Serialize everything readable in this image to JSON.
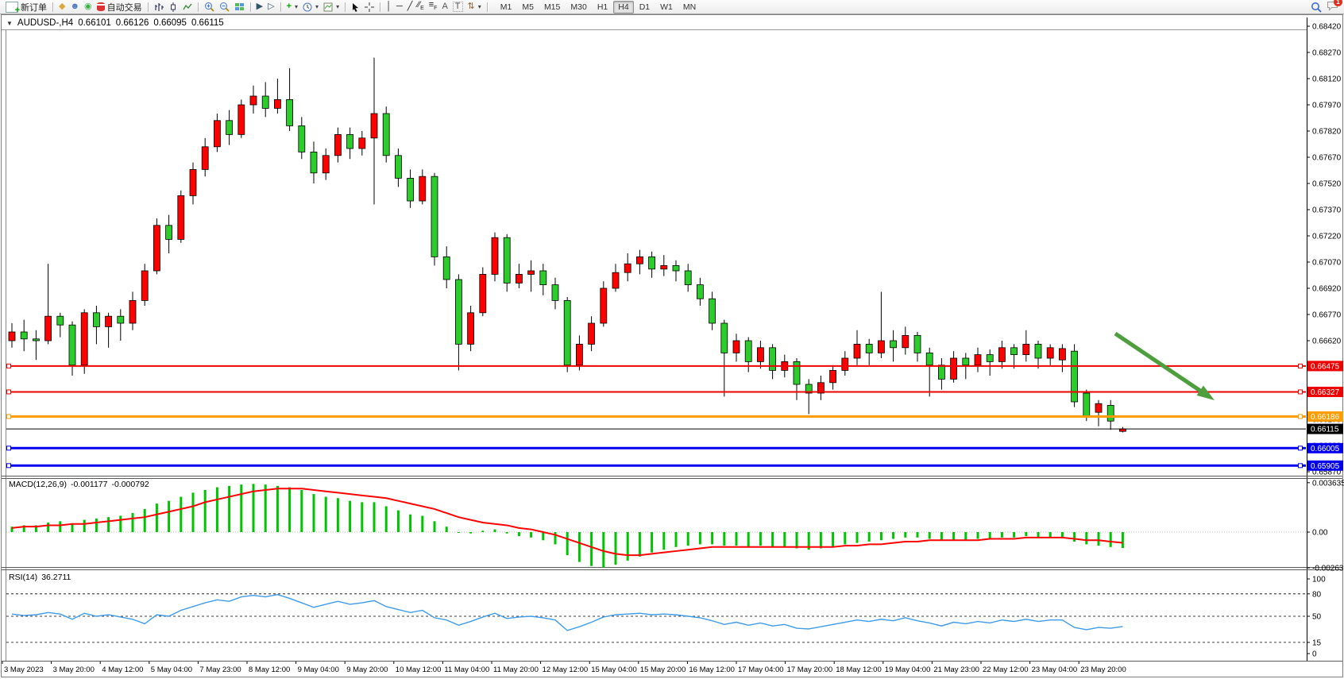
{
  "toolbar": {
    "new_order_label": "新订单",
    "auto_trading_label": "自动交易",
    "timeframes": [
      "M1",
      "M5",
      "M15",
      "M30",
      "H1",
      "H4",
      "D1",
      "W1",
      "MN"
    ],
    "active_timeframe": "H4",
    "notification_count": "1",
    "text_tool_label": "A",
    "label_tool_label": "T"
  },
  "chart": {
    "header_symbol": "AUDUSD-,H4",
    "ohlc": {
      "open": "0.66101",
      "high": "0.66126",
      "low": "0.66095",
      "close": "0.66115"
    },
    "current_price": "0.66115",
    "horizontal_lines": [
      {
        "price": 0.66475,
        "label": "0.66475",
        "color": "#ee0000",
        "thickness": 2,
        "handles": true
      },
      {
        "price": 0.66327,
        "label": "0.66327",
        "color": "#ee0000",
        "thickness": 2,
        "handles": true
      },
      {
        "price": 0.66186,
        "label": "0.66186",
        "color": "#ff9c00",
        "thickness": 3,
        "handles": true
      },
      {
        "price": 0.66115,
        "label": "0.66115",
        "color": "#000000",
        "thickness": 1,
        "handles": false
      },
      {
        "price": 0.66005,
        "label": "0.66005",
        "color": "#0000ee",
        "thickness": 3,
        "handles": true
      },
      {
        "price": 0.65905,
        "label": "0.65905",
        "color": "#0000ee",
        "thickness": 3,
        "handles": true
      }
    ],
    "annotation": {
      "type": "arrow",
      "direction": "down-right",
      "color": "#4e9e3d"
    }
  },
  "price_axis": {
    "ticks": [
      "0.68420",
      "0.68270",
      "0.68120",
      "0.67970",
      "0.67820",
      "0.67670",
      "0.67520",
      "0.67370",
      "0.67220",
      "0.67070",
      "0.66920",
      "0.66770",
      "0.66620",
      "0.66470",
      "0.66320",
      "0.66170",
      "0.66020",
      "0.65870"
    ]
  },
  "time_axis": {
    "labels": [
      "3 May 2023",
      "3 May 20:00",
      "4 May 12:00",
      "5 May 04:00",
      "7 May 23:00",
      "8 May 12:00",
      "9 May 04:00",
      "9 May 20:00",
      "10 May 12:00",
      "11 May 04:00",
      "11 May 20:00",
      "12 May 12:00",
      "15 May 04:00",
      "15 May 20:00",
      "16 May 12:00",
      "17 May 04:00",
      "17 May 20:00",
      "18 May 12:00",
      "19 May 04:00",
      "21 May 23:00",
      "22 May 12:00",
      "23 May 04:00",
      "23 May 20:00"
    ]
  },
  "indicators": {
    "macd": {
      "label": "MACD(12,26,9)",
      "main": "-0.001177",
      "signal": "-0.000792",
      "scale": [
        "0.003635",
        "0.00",
        "-0.00263"
      ]
    },
    "rsi": {
      "label": "RSI(14)",
      "value": "36.2711",
      "scale": [
        "100",
        "80",
        "50",
        "15",
        "0"
      ]
    }
  },
  "colors": {
    "bull": "#ff0000",
    "bear": "#2bcc2b",
    "wick": "#000000",
    "macd_hist": "#00c400",
    "macd_signal": "#ff0000",
    "rsi": "#3e9be9",
    "line_red": "#ee0000",
    "line_orange": "#ff9c00",
    "line_blue": "#0000ee",
    "current_price": "#000000",
    "arrow": "#4e9e3d"
  },
  "chart_data": [
    {
      "type": "candlestick",
      "title": "AUDUSD- H4",
      "color_convention": "red = bullish, green = bearish (Chinese convention)",
      "ylim": [
        0.6587,
        0.6842
      ],
      "current_bar": {
        "open": 0.66101,
        "high": 0.66126,
        "low": 0.66095,
        "close": 0.66115
      },
      "candles": [
        [
          0.6662,
          0.6672,
          0.6658,
          0.6667
        ],
        [
          0.6667,
          0.6674,
          0.6656,
          0.6663
        ],
        [
          0.6663,
          0.6668,
          0.6651,
          0.6662
        ],
        [
          0.6662,
          0.6706,
          0.666,
          0.6676
        ],
        [
          0.6676,
          0.6678,
          0.6664,
          0.6671
        ],
        [
          0.6671,
          0.6673,
          0.6642,
          0.6648
        ],
        [
          0.6648,
          0.668,
          0.6643,
          0.6678
        ],
        [
          0.6678,
          0.6682,
          0.666,
          0.667
        ],
        [
          0.667,
          0.6678,
          0.6658,
          0.6676
        ],
        [
          0.6676,
          0.668,
          0.6662,
          0.6672
        ],
        [
          0.6672,
          0.669,
          0.6668,
          0.6685
        ],
        [
          0.6685,
          0.6706,
          0.6682,
          0.6702
        ],
        [
          0.6702,
          0.6732,
          0.67,
          0.6728
        ],
        [
          0.6728,
          0.6734,
          0.6712,
          0.672
        ],
        [
          0.672,
          0.6748,
          0.6718,
          0.6745
        ],
        [
          0.6745,
          0.6764,
          0.674,
          0.676
        ],
        [
          0.676,
          0.6778,
          0.6756,
          0.6773
        ],
        [
          0.6773,
          0.6792,
          0.677,
          0.6788
        ],
        [
          0.6788,
          0.6794,
          0.6774,
          0.678
        ],
        [
          0.678,
          0.68,
          0.6778,
          0.6797
        ],
        [
          0.6797,
          0.6808,
          0.6792,
          0.6802
        ],
        [
          0.6802,
          0.681,
          0.679,
          0.6795
        ],
        [
          0.6795,
          0.6812,
          0.6792,
          0.68
        ],
        [
          0.68,
          0.6818,
          0.6782,
          0.6785
        ],
        [
          0.6785,
          0.679,
          0.6766,
          0.677
        ],
        [
          0.677,
          0.6776,
          0.6752,
          0.6758
        ],
        [
          0.6758,
          0.6772,
          0.6754,
          0.6768
        ],
        [
          0.6768,
          0.6784,
          0.6764,
          0.678
        ],
        [
          0.678,
          0.6784,
          0.6766,
          0.6772
        ],
        [
          0.6772,
          0.6782,
          0.6768,
          0.6778
        ],
        [
          0.6778,
          0.6824,
          0.674,
          0.6792
        ],
        [
          0.6792,
          0.6796,
          0.6764,
          0.6768
        ],
        [
          0.6768,
          0.6772,
          0.675,
          0.6755
        ],
        [
          0.6755,
          0.676,
          0.6738,
          0.6742
        ],
        [
          0.6742,
          0.676,
          0.674,
          0.6756
        ],
        [
          0.6756,
          0.6758,
          0.6705,
          0.671
        ],
        [
          0.671,
          0.6716,
          0.6692,
          0.6697
        ],
        [
          0.6697,
          0.67,
          0.6645,
          0.666
        ],
        [
          0.666,
          0.6682,
          0.6656,
          0.6678
        ],
        [
          0.6678,
          0.6704,
          0.6676,
          0.67
        ],
        [
          0.67,
          0.6724,
          0.6696,
          0.6721
        ],
        [
          0.6721,
          0.6723,
          0.669,
          0.6695
        ],
        [
          0.6695,
          0.6706,
          0.6692,
          0.67
        ],
        [
          0.67,
          0.6708,
          0.669,
          0.6702
        ],
        [
          0.6702,
          0.6706,
          0.6688,
          0.6694
        ],
        [
          0.6694,
          0.6698,
          0.668,
          0.6685
        ],
        [
          0.6685,
          0.6687,
          0.6644,
          0.6648
        ],
        [
          0.6648,
          0.6665,
          0.6645,
          0.666
        ],
        [
          0.666,
          0.6676,
          0.6656,
          0.6672
        ],
        [
          0.6672,
          0.6696,
          0.667,
          0.6692
        ],
        [
          0.6692,
          0.6706,
          0.669,
          0.6701
        ],
        [
          0.6701,
          0.6712,
          0.6696,
          0.6706
        ],
        [
          0.6706,
          0.6714,
          0.67,
          0.671
        ],
        [
          0.671,
          0.6713,
          0.6698,
          0.6703
        ],
        [
          0.6703,
          0.6711,
          0.6699,
          0.6705
        ],
        [
          0.6705,
          0.6708,
          0.6696,
          0.6702
        ],
        [
          0.6702,
          0.6706,
          0.669,
          0.6694
        ],
        [
          0.6694,
          0.6698,
          0.6682,
          0.6686
        ],
        [
          0.6686,
          0.669,
          0.6668,
          0.6672
        ],
        [
          0.6672,
          0.6674,
          0.663,
          0.6655
        ],
        [
          0.6655,
          0.6666,
          0.665,
          0.6662
        ],
        [
          0.6662,
          0.6664,
          0.6644,
          0.665
        ],
        [
          0.665,
          0.6662,
          0.6646,
          0.6658
        ],
        [
          0.6658,
          0.666,
          0.664,
          0.6645
        ],
        [
          0.6645,
          0.6654,
          0.6641,
          0.665
        ],
        [
          0.665,
          0.6652,
          0.6628,
          0.6637
        ],
        [
          0.6637,
          0.664,
          0.662,
          0.6632
        ],
        [
          0.6632,
          0.6642,
          0.6628,
          0.6638
        ],
        [
          0.6638,
          0.6648,
          0.6634,
          0.6645
        ],
        [
          0.6645,
          0.6656,
          0.6642,
          0.6652
        ],
        [
          0.6652,
          0.6668,
          0.6648,
          0.666
        ],
        [
          0.666,
          0.6663,
          0.6648,
          0.6655
        ],
        [
          0.6655,
          0.669,
          0.6652,
          0.6662
        ],
        [
          0.6662,
          0.6668,
          0.665,
          0.6658
        ],
        [
          0.6658,
          0.667,
          0.6654,
          0.6665
        ],
        [
          0.6665,
          0.6667,
          0.665,
          0.6655
        ],
        [
          0.6655,
          0.6658,
          0.663,
          0.6648
        ],
        [
          0.6648,
          0.6652,
          0.6634,
          0.664
        ],
        [
          0.664,
          0.6656,
          0.6638,
          0.6652
        ],
        [
          0.6652,
          0.6655,
          0.664,
          0.6648
        ],
        [
          0.6648,
          0.6658,
          0.6644,
          0.6654
        ],
        [
          0.6654,
          0.6657,
          0.6642,
          0.665
        ],
        [
          0.665,
          0.6662,
          0.6646,
          0.6658
        ],
        [
          0.6658,
          0.666,
          0.6646,
          0.6654
        ],
        [
          0.6654,
          0.6668,
          0.665,
          0.666
        ],
        [
          0.666,
          0.6662,
          0.6646,
          0.6652
        ],
        [
          0.6652,
          0.666,
          0.6648,
          0.6658
        ],
        [
          0.6651,
          0.666,
          0.6644,
          0.66575
        ],
        [
          0.6656,
          0.666,
          0.6624,
          0.6627
        ],
        [
          0.6632,
          0.6634,
          0.6616,
          0.6619
        ],
        [
          0.6621,
          0.6628,
          0.6613,
          0.6626
        ],
        [
          0.6625,
          0.6628,
          0.6611,
          0.6616
        ],
        [
          0.66101,
          0.66126,
          0.66095,
          0.66115
        ]
      ]
    },
    {
      "type": "macd",
      "params": "12,26,9",
      "current_main": -0.001177,
      "current_signal": -0.000792,
      "ylim": [
        -0.00263,
        0.003635
      ],
      "histogram": [
        0.0004,
        0.0005,
        0.0005,
        0.0007,
        0.0008,
        0.0006,
        0.0009,
        0.001,
        0.0011,
        0.0012,
        0.0014,
        0.0017,
        0.0021,
        0.0023,
        0.0026,
        0.0029,
        0.0031,
        0.0033,
        0.0034,
        0.0035,
        0.00355,
        0.0035,
        0.0034,
        0.0033,
        0.0031,
        0.0028,
        0.0026,
        0.0025,
        0.0023,
        0.0022,
        0.0022,
        0.0019,
        0.0016,
        0.0013,
        0.0012,
        0.0008,
        0.0004,
        0.0,
        -0.0001,
        0.0001,
        0.0002,
        -0.0001,
        -0.0003,
        -0.0004,
        -0.0006,
        -0.0009,
        -0.0017,
        -0.0022,
        -0.0025,
        -0.0026,
        -0.0024,
        -0.0021,
        -0.0018,
        -0.0015,
        -0.0013,
        -0.0011,
        -0.001,
        -0.0009,
        -0.0009,
        -0.001,
        -0.001,
        -0.0011,
        -0.001,
        -0.0011,
        -0.0011,
        -0.0012,
        -0.0013,
        -0.0012,
        -0.0011,
        -0.0009,
        -0.0008,
        -0.0007,
        -0.0006,
        -0.0005,
        -0.0004,
        -0.0004,
        -0.0005,
        -0.0006,
        -0.0006,
        -0.0006,
        -0.0005,
        -0.0005,
        -0.0004,
        -0.0004,
        -0.0003,
        -0.0004,
        -0.0004,
        -0.0004,
        -0.0007,
        -0.0009,
        -0.001,
        -0.0011,
        -0.001177
      ],
      "signal": [
        0.0003,
        0.0004,
        0.0004,
        0.0005,
        0.0005,
        0.0006,
        0.0006,
        0.0007,
        0.0008,
        0.0009,
        0.001,
        0.0011,
        0.0013,
        0.0015,
        0.0017,
        0.0019,
        0.0022,
        0.0024,
        0.0026,
        0.0028,
        0.003,
        0.0031,
        0.0032,
        0.0032,
        0.0032,
        0.0031,
        0.003,
        0.0029,
        0.0028,
        0.0027,
        0.0026,
        0.0025,
        0.0023,
        0.0021,
        0.0019,
        0.0017,
        0.0014,
        0.0011,
        0.0009,
        0.0007,
        0.0006,
        0.0005,
        0.0003,
        0.0002,
        0.0,
        -0.0002,
        -0.0005,
        -0.0008,
        -0.0011,
        -0.0014,
        -0.0016,
        -0.0017,
        -0.0017,
        -0.0016,
        -0.0015,
        -0.0014,
        -0.0013,
        -0.0012,
        -0.0011,
        -0.0011,
        -0.0011,
        -0.0011,
        -0.0011,
        -0.0011,
        -0.0011,
        -0.0011,
        -0.0011,
        -0.0011,
        -0.0011,
        -0.001,
        -0.001,
        -0.0009,
        -0.0009,
        -0.0008,
        -0.0007,
        -0.0007,
        -0.0006,
        -0.0006,
        -0.0006,
        -0.0006,
        -0.0006,
        -0.0005,
        -0.0005,
        -0.0005,
        -0.0004,
        -0.0004,
        -0.0004,
        -0.0004,
        -0.0005,
        -0.0006,
        -0.0006,
        -0.0007,
        -0.000792
      ]
    },
    {
      "type": "rsi",
      "period": 14,
      "current": 36.2711,
      "ylim": [
        0,
        100
      ],
      "levels": [
        80,
        50,
        15
      ],
      "values": [
        53,
        51,
        52,
        55,
        53,
        46,
        54,
        50,
        52,
        49,
        46,
        40,
        52,
        50,
        58,
        63,
        68,
        72,
        70,
        76,
        78,
        76,
        79,
        74,
        68,
        62,
        66,
        70,
        66,
        68,
        71,
        63,
        59,
        55,
        58,
        48,
        45,
        38,
        43,
        49,
        54,
        47,
        49,
        50,
        48,
        45,
        31,
        36,
        42,
        49,
        52,
        53,
        54,
        52,
        53,
        52,
        50,
        48,
        44,
        39,
        42,
        38,
        41,
        37,
        39,
        34,
        33,
        36,
        39,
        42,
        45,
        43,
        46,
        44,
        48,
        44,
        41,
        37,
        42,
        40,
        43,
        41,
        45,
        43,
        46,
        43,
        45,
        45,
        35,
        32,
        35,
        34,
        36.2711
      ]
    }
  ]
}
